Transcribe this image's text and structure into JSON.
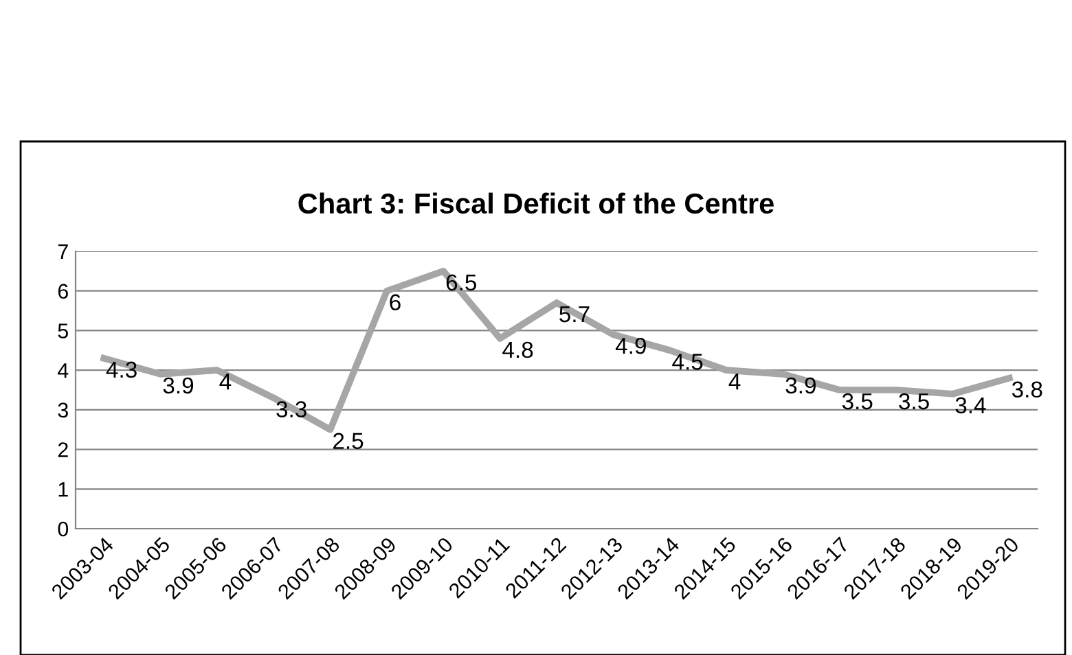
{
  "chart_data": {
    "type": "line",
    "title": "Chart 3: Fiscal Deficit of the Centre",
    "categories": [
      "2003-04",
      "2004-05",
      "2005-06",
      "2006-07",
      "2007-08",
      "2008-09",
      "2009-10",
      "2010-11",
      "2011-12",
      "2012-13",
      "2013-14",
      "2014-15",
      "2015-16",
      "2016-17",
      "2017-18",
      "2018-19",
      "2019-20"
    ],
    "series": [
      {
        "color": "#a6a6a6",
        "values": [
          4.3,
          3.9,
          4,
          3.3,
          2.5,
          6,
          6.5,
          4.8,
          5.7,
          4.9,
          4.5,
          4,
          3.9,
          3.5,
          3.5,
          3.4,
          3.8
        ]
      }
    ],
    "ylim": [
      0,
      7
    ],
    "yticks": [
      0,
      1,
      2,
      3,
      4,
      5,
      6,
      7
    ],
    "grid": "y",
    "legend": false,
    "marker": "none",
    "line_style": "solid",
    "data_labels": true
  }
}
